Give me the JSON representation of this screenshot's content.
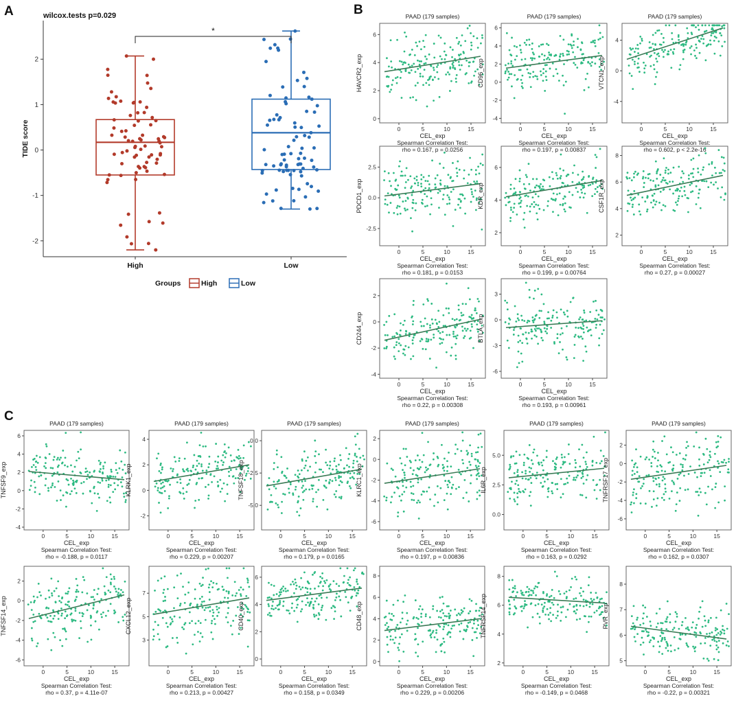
{
  "figure": {
    "panel_a_letter": "A",
    "panel_b_letter": "B",
    "panel_c_letter": "C"
  },
  "colors": {
    "high": "#b23a2a",
    "low": "#2a6db5",
    "scatter_point": "#2dba82",
    "fit_line": "#3a7a55",
    "frame": "#555555"
  },
  "chart_data": [
    {
      "id": "A",
      "type": "box",
      "title": "wilcox.tests p=0.029",
      "ylabel": "TIDE score",
      "ylim": [
        -2.35,
        2.85
      ],
      "yticks": [
        -2,
        -1,
        0,
        1,
        2
      ],
      "categories": [
        "High",
        "Low"
      ],
      "significance": "*",
      "legend": {
        "title": "Groups",
        "labels": [
          "High",
          "Low"
        ],
        "position": "bottom"
      },
      "series": [
        {
          "name": "High",
          "min": -2.2,
          "q1": -0.55,
          "median": 0.17,
          "q3": 0.67,
          "max": 2.07,
          "n_points": 80,
          "seed": 11
        },
        {
          "name": "Low",
          "min": -1.3,
          "q1": -0.43,
          "median": 0.38,
          "q3": 1.12,
          "max": 2.62,
          "n_points": 85,
          "seed": 23
        }
      ]
    },
    {
      "id": "B1",
      "type": "scatter",
      "title": "PAAD (179 samples)",
      "xlabel": "CEL_exp",
      "ylabel": "HAVCR2_exp",
      "xlim": [
        -4,
        18
      ],
      "xticks": [
        0,
        5,
        10,
        15
      ],
      "ylim": [
        -0.3,
        6.8
      ],
      "yticks": [
        0,
        2,
        4,
        6
      ],
      "fit": [
        [
          -3,
          3.35
        ],
        [
          17,
          4.45
        ]
      ],
      "noise": 1.1,
      "n_points": 179,
      "seed": 101,
      "stat_title": "Spearman Correlation Test:",
      "stat_text": "rho = 0.167, p = 0.0256"
    },
    {
      "id": "B2",
      "type": "scatter",
      "title": "PAAD (179 samples)",
      "xlabel": "CEL_exp",
      "ylabel": "CD96_exp",
      "xlim": [
        -4,
        18
      ],
      "xticks": [
        0,
        5,
        10,
        15
      ],
      "ylim": [
        -4.5,
        6.5
      ],
      "yticks": [
        -4,
        -2,
        0,
        2,
        4,
        6
      ],
      "fit": [
        [
          -3,
          1.55
        ],
        [
          17,
          2.95
        ]
      ],
      "noise": 1.6,
      "n_points": 179,
      "seed": 102,
      "stat_title": "Spearman Correlation Test:",
      "stat_text": "rho = 0.197, p = 0.00837"
    },
    {
      "id": "B3",
      "type": "scatter",
      "title": "PAAD (179 samples)",
      "xlabel": "CEL_exp",
      "ylabel": "VTCN1_exp",
      "xlim": [
        -4,
        18
      ],
      "xticks": [
        0,
        5,
        10,
        15
      ],
      "ylim": [
        -6.8,
        6.2
      ],
      "yticks": [
        -4,
        0,
        4
      ],
      "fit": [
        [
          -3,
          1.5
        ],
        [
          17,
          5.6
        ]
      ],
      "noise": 1.7,
      "n_points": 179,
      "seed": 103,
      "stat_title": "Spearman Correlation Test:",
      "stat_text": "rho = 0.602, p < 2.2e-16"
    },
    {
      "id": "B4",
      "type": "scatter",
      "title": "",
      "xlabel": "CEL_exp",
      "ylabel": "PDCD1_exp",
      "xlim": [
        -4,
        18
      ],
      "xticks": [
        0,
        5,
        10,
        15
      ],
      "ylim": [
        -3.9,
        4.2
      ],
      "yticks": [
        -2.5,
        0.0,
        2.5
      ],
      "fit": [
        [
          -3,
          0.15
        ],
        [
          17,
          1.15
        ]
      ],
      "noise": 1.2,
      "n_points": 179,
      "seed": 104,
      "stat_title": "Spearman Correlation Test:",
      "stat_text": "rho = 0.181, p = 0.0153"
    },
    {
      "id": "B5",
      "type": "scatter",
      "title": "",
      "xlabel": "CEL_exp",
      "ylabel": "KDR_exp",
      "xlim": [
        -4,
        18
      ],
      "xticks": [
        0,
        5,
        10,
        15
      ],
      "ylim": [
        1.2,
        7.3
      ],
      "yticks": [
        2,
        4,
        6
      ],
      "fit": [
        [
          -3,
          4.2
        ],
        [
          17,
          5.2
        ]
      ],
      "noise": 0.8,
      "n_points": 179,
      "seed": 105,
      "stat_title": "Spearman Correlation Test:",
      "stat_text": "rho = 0.199, p = 0.00764"
    },
    {
      "id": "B6",
      "type": "scatter",
      "title": "",
      "xlabel": "CEL_exp",
      "ylabel": "CSF1R_exp",
      "xlim": [
        -4,
        18
      ],
      "xticks": [
        0,
        5,
        10,
        15
      ],
      "ylim": [
        1.2,
        8.7
      ],
      "yticks": [
        2,
        4,
        6,
        8
      ],
      "fit": [
        [
          -3,
          5.0
        ],
        [
          17,
          6.5
        ]
      ],
      "noise": 1.0,
      "n_points": 179,
      "seed": 106,
      "stat_title": "Spearman Correlation Test:",
      "stat_text": "rho = 0.27, p = 0.00027"
    },
    {
      "id": "B7",
      "type": "scatter",
      "title": "",
      "xlabel": "CEL_exp",
      "ylabel": "CD244_exp",
      "xlim": [
        -4,
        18
      ],
      "xticks": [
        0,
        5,
        10,
        15
      ],
      "ylim": [
        -4.3,
        3.3
      ],
      "yticks": [
        -4,
        -2,
        0,
        2
      ],
      "fit": [
        [
          -3,
          -1.4
        ],
        [
          17,
          0.2
        ]
      ],
      "noise": 1.1,
      "n_points": 179,
      "seed": 107,
      "stat_title": "Spearman Correlation Test:",
      "stat_text": "rho = 0.22, p = 0.00308"
    },
    {
      "id": "B8",
      "type": "scatter",
      "title": "",
      "xlabel": "CEL_exp",
      "ylabel": "BTLA_exp",
      "xlim": [
        -4,
        18
      ],
      "xticks": [
        0,
        5,
        10,
        15
      ],
      "ylim": [
        -6.8,
        4.8
      ],
      "yticks": [
        -6,
        -3,
        0,
        3
      ],
      "fit": [
        [
          -3,
          -0.9
        ],
        [
          17,
          -0.1
        ]
      ],
      "noise": 1.8,
      "n_points": 179,
      "seed": 108,
      "stat_title": "Spearman Correlation Test:",
      "stat_text": "rho = 0.193, p = 0.00961"
    },
    {
      "id": "C1",
      "type": "scatter",
      "title": "PAAD (179 samples)",
      "xlabel": "CEL_exp",
      "ylabel": "TNFSF9_exp",
      "xlim": [
        -4,
        18
      ],
      "xticks": [
        0,
        5,
        10,
        15
      ],
      "ylim": [
        -4.3,
        6.6
      ],
      "yticks": [
        -4,
        -2,
        0,
        2,
        4,
        6
      ],
      "fit": [
        [
          -3,
          2.1
        ],
        [
          17,
          1.2
        ]
      ],
      "noise": 1.6,
      "n_points": 179,
      "seed": 201,
      "stat_title": "Spearman Correlation Test:",
      "stat_text": "rho = -0.188, p = 0.0117"
    },
    {
      "id": "C2",
      "type": "scatter",
      "title": "PAAD (179 samples)",
      "xlabel": "CEL_exp",
      "ylabel": "KLRK1_exp",
      "xlim": [
        -4,
        18
      ],
      "xticks": [
        0,
        5,
        10,
        15
      ],
      "ylim": [
        -3.1,
        4.7
      ],
      "yticks": [
        -2,
        0,
        2,
        4
      ],
      "fit": [
        [
          -3,
          0.7
        ],
        [
          17,
          2.0
        ]
      ],
      "noise": 1.1,
      "n_points": 179,
      "seed": 202,
      "stat_title": "Spearman Correlation Test:",
      "stat_text": "rho = 0.229, p = 0.00207"
    },
    {
      "id": "C3",
      "type": "scatter",
      "title": "PAAD (179 samples)",
      "xlabel": "CEL_exp",
      "ylabel": "TNFSF18_exp",
      "xlim": [
        -4,
        18
      ],
      "xticks": [
        0,
        5,
        10,
        15
      ],
      "ylim": [
        -6.9,
        0.8
      ],
      "yticks": [
        -5.0,
        -2.5,
        0.0
      ],
      "fit": [
        [
          -3,
          -3.5
        ],
        [
          17,
          -2.2
        ]
      ],
      "noise": 1.2,
      "n_points": 179,
      "seed": 203,
      "stat_title": "Spearman Correlation Test:",
      "stat_text": "rho = 0.179, p = 0.0165"
    },
    {
      "id": "C4",
      "type": "scatter",
      "title": "PAAD (179 samples)",
      "xlabel": "CEL_exp",
      "ylabel": "KLRC1_exp",
      "xlim": [
        -4,
        18
      ],
      "xticks": [
        0,
        5,
        10,
        15
      ],
      "ylim": [
        -6.8,
        2.8
      ],
      "yticks": [
        -6,
        -4,
        -2,
        0,
        2
      ],
      "fit": [
        [
          -3,
          -2.3
        ],
        [
          17,
          -0.9
        ]
      ],
      "noise": 1.5,
      "n_points": 179,
      "seed": 204,
      "stat_title": "Spearman Correlation Test:",
      "stat_text": "rho = 0.197, p = 0.00836"
    },
    {
      "id": "C5",
      "type": "scatter",
      "title": "PAAD (179 samples)",
      "xlabel": "CEL_exp",
      "ylabel": "IL6R_exp",
      "xlim": [
        -4,
        18
      ],
      "xticks": [
        0,
        5,
        10,
        15
      ],
      "ylim": [
        -1.3,
        7.1
      ],
      "yticks": [
        0.0,
        2.5,
        5.0
      ],
      "fit": [
        [
          -3,
          3.1
        ],
        [
          17,
          3.9
        ]
      ],
      "noise": 1.1,
      "n_points": 179,
      "seed": 205,
      "stat_title": "Spearman Correlation Test:",
      "stat_text": "rho = 0.163, p = 0.0292"
    },
    {
      "id": "C6",
      "type": "scatter",
      "title": "PAAD (179 samples)",
      "xlabel": "CEL_exp",
      "ylabel": "TNFRSF17_exp",
      "xlim": [
        -4,
        18
      ],
      "xticks": [
        0,
        5,
        10,
        15
      ],
      "ylim": [
        -7.2,
        3.6
      ],
      "yticks": [
        -6,
        -4,
        -2,
        0,
        2
      ],
      "fit": [
        [
          -3,
          -1.7
        ],
        [
          17,
          -0.2
        ]
      ],
      "noise": 1.8,
      "n_points": 179,
      "seed": 206,
      "stat_title": "Spearman Correlation Test:",
      "stat_text": "rho = 0.162, p = 0.0307"
    },
    {
      "id": "C7",
      "type": "scatter",
      "title": "",
      "xlabel": "CEL_exp",
      "ylabel": "TNFSF14_exp",
      "xlim": [
        -4,
        18
      ],
      "xticks": [
        0,
        5,
        10,
        15
      ],
      "ylim": [
        -6.6,
        3.5
      ],
      "yticks": [
        -6,
        -4,
        -2,
        0,
        2
      ],
      "fit": [
        [
          -3,
          -1.8
        ],
        [
          17,
          0.6
        ]
      ],
      "noise": 1.5,
      "n_points": 179,
      "seed": 207,
      "stat_title": "Spearman Correlation Test:",
      "stat_text": "rho = 0.37, p = 4.11e-07"
    },
    {
      "id": "C8",
      "type": "scatter",
      "title": "",
      "xlabel": "CEL_exp",
      "ylabel": "CXCL12_exp",
      "xlim": [
        -4,
        18
      ],
      "xticks": [
        0,
        5,
        10,
        15
      ],
      "ylim": [
        0.8,
        9.3
      ],
      "yticks": [
        3,
        5,
        7
      ],
      "fit": [
        [
          -3,
          5.2
        ],
        [
          17,
          6.6
        ]
      ],
      "noise": 1.5,
      "n_points": 179,
      "seed": 208,
      "stat_title": "Spearman Correlation Test:",
      "stat_text": "rho = 0.213, p = 0.00427"
    },
    {
      "id": "C9",
      "type": "scatter",
      "title": "",
      "xlabel": "CEL_exp",
      "ylabel": "CD40_exp",
      "xlim": [
        -4,
        18
      ],
      "xticks": [
        0,
        5,
        10,
        15
      ],
      "ylim": [
        -0.5,
        6.8
      ],
      "yticks": [
        0,
        2,
        4,
        6
      ],
      "fit": [
        [
          -3,
          4.3
        ],
        [
          17,
          5.2
        ]
      ],
      "noise": 0.8,
      "n_points": 179,
      "seed": 209,
      "stat_title": "Spearman Correlation Test:",
      "stat_text": "rho = 0.158, p = 0.0349"
    },
    {
      "id": "C10",
      "type": "scatter",
      "title": "",
      "xlabel": "CEL_exp",
      "ylabel": "CD48_exp",
      "xlim": [
        -4,
        18
      ],
      "xticks": [
        0,
        5,
        10,
        15
      ],
      "ylim": [
        -0.4,
        8.9
      ],
      "yticks": [
        0,
        2,
        4,
        6,
        8
      ],
      "fit": [
        [
          -3,
          2.9
        ],
        [
          17,
          4.0
        ]
      ],
      "noise": 1.3,
      "n_points": 179,
      "seed": 210,
      "stat_title": "Spearman Correlation Test:",
      "stat_text": "rho = 0.229, p = 0.00206"
    },
    {
      "id": "C11",
      "type": "scatter",
      "title": "",
      "xlabel": "CEL_exp",
      "ylabel": "TNFRSF14_exp",
      "xlim": [
        -4,
        18
      ],
      "xticks": [
        0,
        5,
        10,
        15
      ],
      "ylim": [
        1.8,
        8.7
      ],
      "yticks": [
        2,
        4,
        6,
        8
      ],
      "fit": [
        [
          -3,
          6.55
        ],
        [
          17,
          6.15
        ]
      ],
      "noise": 0.8,
      "n_points": 179,
      "seed": 211,
      "stat_title": "Spearman Correlation Test:",
      "stat_text": "rho = -0.149, p = 0.0468"
    },
    {
      "id": "C12",
      "type": "scatter",
      "title": "",
      "xlabel": "CEL_exp",
      "ylabel": "PVR_exp",
      "xlim": [
        -4,
        18
      ],
      "xticks": [
        0,
        5,
        10,
        15
      ],
      "ylim": [
        4.8,
        8.7
      ],
      "yticks": [
        5,
        6,
        7,
        8
      ],
      "fit": [
        [
          -3,
          6.35
        ],
        [
          17,
          5.85
        ]
      ],
      "noise": 0.5,
      "n_points": 179,
      "seed": 212,
      "stat_title": "Spearman Correlation Test:",
      "stat_text": "rho = -0.22, p = 0.00321"
    }
  ]
}
